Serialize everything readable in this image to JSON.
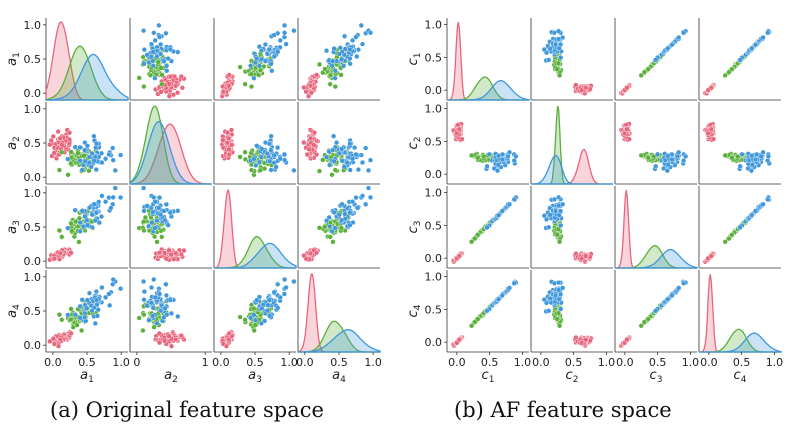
{
  "colors": {
    "pink": "#e8657c",
    "green": "#5ab03a",
    "blue": "#3f97dc"
  },
  "captions": {
    "a": "(a) Original feature space",
    "b": "(b) AF feature space"
  },
  "chart_data": [
    {
      "type": "scatter",
      "grid": false,
      "variables": [
        {
          "symbol": "a",
          "sub": "1",
          "range": [
            -0.1,
            1.1
          ],
          "ticks": [
            0.0,
            0.5,
            1.0
          ],
          "tick_labels": [
            "0.0",
            "0.5",
            "1.0"
          ]
        },
        {
          "symbol": "a",
          "sub": "2",
          "range": [
            -0.1,
            1.1
          ],
          "ticks": [
            0.0,
            0.5,
            1.0
          ],
          "tick_labels": [
            "0.0",
            "0.5",
            "1.0"
          ],
          "x_ticks": [
            0,
            1
          ],
          "x_tick_labels": [
            "0",
            "1"
          ],
          "y_ticks": [
            0.0,
            0.5,
            1.0
          ]
        },
        {
          "symbol": "a",
          "sub": "3",
          "range": [
            -0.1,
            1.1
          ],
          "ticks": [
            0.0,
            0.5,
            1.0
          ],
          "tick_labels": [
            "0.0",
            "0.5",
            "1.0"
          ]
        },
        {
          "symbol": "a",
          "sub": "4",
          "range": [
            -0.1,
            1.1
          ],
          "ticks": [
            0.0,
            0.5,
            1.0
          ],
          "tick_labels": [
            "0.0",
            "0.5",
            "1.0"
          ]
        }
      ],
      "groups": [
        {
          "color": "pink",
          "mean": [
            0.12,
            0.48,
            0.1,
            0.1
          ],
          "sd": [
            0.08,
            0.14,
            0.04,
            0.04
          ],
          "n": 50
        },
        {
          "color": "green",
          "mean": [
            0.42,
            0.25,
            0.55,
            0.45
          ],
          "sd": [
            0.12,
            0.1,
            0.1,
            0.1
          ],
          "n": 50
        },
        {
          "color": "blue",
          "mean": [
            0.62,
            0.32,
            0.72,
            0.65
          ],
          "sd": [
            0.14,
            0.12,
            0.12,
            0.14
          ],
          "n": 50
        }
      ],
      "upper_rows_y_range": [
        -0.1,
        1.05
      ]
    },
    {
      "type": "scatter",
      "grid": false,
      "variables": [
        {
          "symbol": "c",
          "sub": "1",
          "range": [
            -0.15,
            1.1
          ],
          "ticks": [
            0.0,
            0.5,
            1.0
          ],
          "tick_labels": [
            "0.0",
            "0.5",
            "1.0"
          ]
        },
        {
          "symbol": "c",
          "sub": "2",
          "range": [
            -0.15,
            1.1
          ],
          "ticks": [
            0.0,
            0.5,
            1.0
          ],
          "tick_labels": [
            "0.0",
            "0.5",
            "1.0"
          ]
        },
        {
          "symbol": "c",
          "sub": "3",
          "range": [
            -0.15,
            1.1
          ],
          "ticks": [
            0.0,
            0.5,
            1.0
          ],
          "tick_labels": [
            "0.0",
            "0.5",
            "1.0"
          ]
        },
        {
          "symbol": "c",
          "sub": "4",
          "range": [
            -0.15,
            1.1
          ],
          "ticks": [
            0.0,
            0.5,
            1.0
          ],
          "tick_labels": [
            "0.0",
            "0.5",
            "1.0"
          ]
        }
      ],
      "groups": [
        {
          "color": "pink",
          "mean": [
            0.02,
            0.66,
            0.02,
            0.02
          ],
          "sd": [
            0.025,
            0.06,
            0.025,
            0.025
          ],
          "n": 50
        },
        {
          "color": "green",
          "mean": [
            0.42,
            0.26,
            0.45,
            0.45
          ],
          "sd": [
            0.09,
            0.025,
            0.09,
            0.09
          ],
          "n": 50
        },
        {
          "color": "blue",
          "mean": [
            0.68,
            0.2,
            0.7,
            0.7
          ],
          "sd": [
            0.12,
            0.07,
            0.12,
            0.12
          ],
          "n": 50
        }
      ],
      "collinear": [
        0,
        2,
        3
      ]
    }
  ]
}
